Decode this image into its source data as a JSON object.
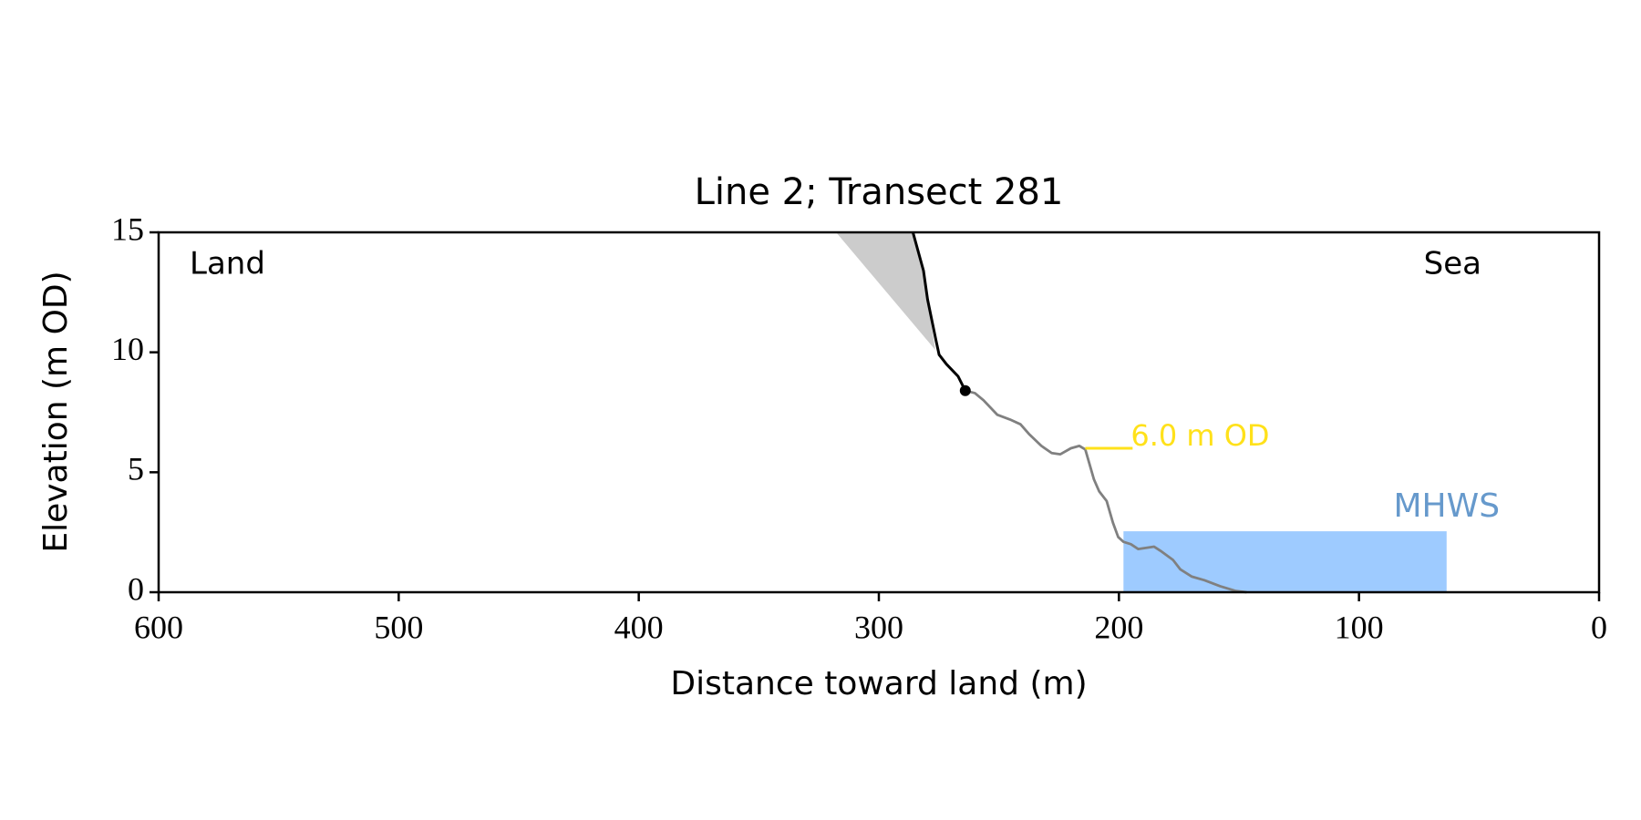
{
  "chart_data": {
    "type": "line",
    "title": "Line 2; Transect 281",
    "xlabel": "Distance toward land (m)",
    "ylabel": "Elevation (m OD)",
    "xlim": [
      600,
      0
    ],
    "ylim": [
      0,
      15
    ],
    "xticks": [
      600,
      500,
      400,
      300,
      200,
      100,
      0
    ],
    "yticks": [
      0,
      5,
      10,
      15
    ],
    "annotations": [
      "Land",
      "Sea"
    ],
    "shading": {
      "color": "#cccccc",
      "x": [
        317.8,
        285.8,
        281.4,
        279.7,
        276.5
      ],
      "values": [
        15,
        15,
        13.4,
        12.2,
        10.1
      ]
    },
    "cliff": {
      "color": "#000000",
      "x": [
        285.8,
        281.4,
        279.7,
        276.2,
        274.9,
        271.8,
        267,
        264
      ],
      "values": [
        15,
        13.4,
        12.2,
        10.5,
        9.9,
        9.5,
        9.0,
        8.4
      ]
    },
    "cliff_toe": {
      "color": "#000000",
      "x": 264,
      "value": 8.4
    },
    "profile": {
      "color": "#808080",
      "x": [
        264,
        260,
        256.4,
        250.7,
        245.4,
        241,
        237.5,
        232.3,
        228,
        224.4,
        220,
        216.5,
        214,
        210.4,
        208.2,
        205.1,
        202.5,
        200.3,
        198.1,
        195,
        192,
        188.5,
        185.4,
        182.3,
        177.5,
        174.4,
        169.6,
        164.4,
        157.8,
        151.2,
        146.8
      ],
      "values": [
        8.4,
        8.3,
        8.0,
        7.4,
        7.2,
        7.0,
        6.6,
        6.1,
        5.8,
        5.75,
        6.0,
        6.1,
        5.95,
        4.7,
        4.2,
        3.8,
        2.9,
        2.3,
        2.1,
        2.0,
        1.8,
        1.85,
        1.9,
        1.7,
        1.35,
        0.95,
        0.65,
        0.5,
        0.25,
        0.05,
        0
      ]
    },
    "level": {
      "label": "6.0 m OD",
      "value": 6.0,
      "x": [
        214,
        194.3
      ],
      "color": "#ffe11a"
    },
    "mhws": {
      "label": "MHWS",
      "value": 2.54,
      "x": [
        198.1,
        63.5
      ],
      "color": "#9ecbff",
      "label_color": "#6699cc"
    }
  }
}
